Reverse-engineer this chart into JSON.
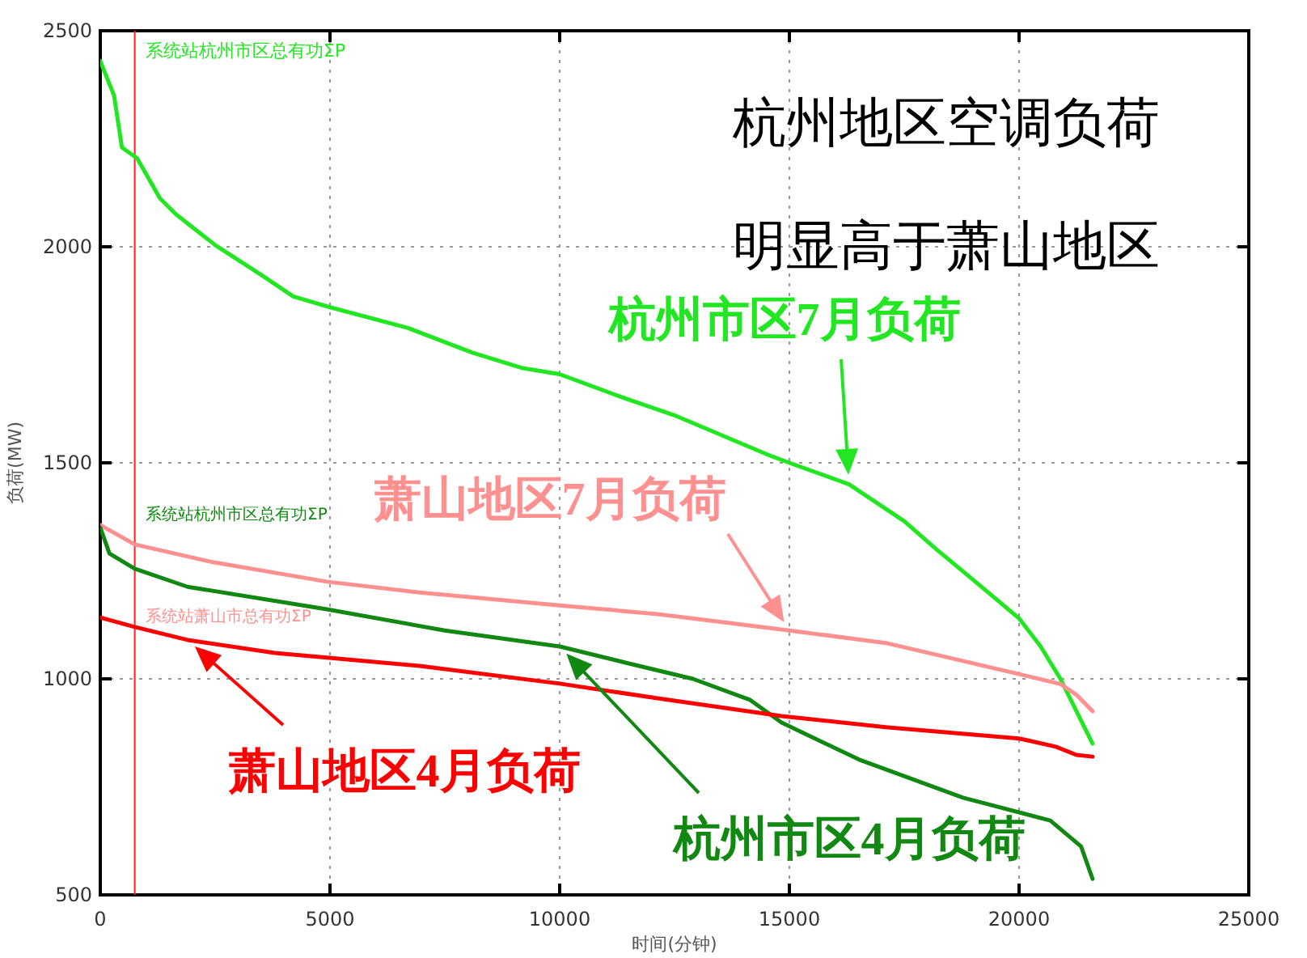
{
  "chart_data": {
    "type": "line",
    "xlabel": "时间(分钟)",
    "ylabel": "负荷(MW)",
    "xlim": [
      0,
      25000
    ],
    "ylim": [
      500,
      2500
    ],
    "xticks": [
      0,
      5000,
      10000,
      15000,
      20000,
      25000
    ],
    "yticks": [
      500,
      1000,
      1500,
      2000,
      2500
    ],
    "grid": true,
    "marker": "none",
    "line_style": "solid",
    "ref_lines": [
      {
        "axis": "x",
        "value": 750,
        "color": "#ff2020"
      }
    ],
    "annotations": [
      "系统站杭州市区总有功ΣP",
      "系统站萧山市总有功ΣP",
      "系统站杭州市区总有功ΣP",
      "杭州地区空调负荷",
      "明显高于萧山地区"
    ],
    "series": [
      {
        "name": "杭州市区7月负荷",
        "color": "#22e622",
        "x": [
          0,
          300,
          470,
          800,
          1300,
          1650,
          2500,
          3500,
          4200,
          5000,
          6700,
          8100,
          9200,
          10000,
          11450,
          12500,
          13500,
          14500,
          15000,
          16300,
          17500,
          18200,
          18900,
          20000,
          20470,
          20900,
          21250,
          21600
        ],
        "values": [
          2430,
          2350,
          2230,
          2205,
          2112,
          2075,
          2004,
          1935,
          1885,
          1860,
          1812,
          1755,
          1719,
          1705,
          1648,
          1610,
          1565,
          1520,
          1500,
          1450,
          1365,
          1300,
          1238,
          1140,
          1075,
          1000,
          925,
          850
        ]
      },
      {
        "name": "萧山地区7月负荷",
        "color": "#ff9090",
        "x": [
          0,
          750,
          2450,
          4930,
          6950,
          10000,
          12130,
          15000,
          17100,
          20000,
          20900,
          21250,
          21600
        ],
        "values": [
          1356,
          1311,
          1270,
          1225,
          1200,
          1170,
          1150,
          1112,
          1083,
          1011,
          988,
          963,
          925
        ]
      },
      {
        "name": "杭州市区4月负荷",
        "color": "#118811",
        "x": [
          0,
          200,
          750,
          1900,
          4930,
          7500,
          10000,
          11450,
          12900,
          14150,
          14830,
          16520,
          18780,
          20680,
          21350,
          21600
        ],
        "values": [
          1350,
          1290,
          1255,
          1213,
          1161,
          1112,
          1075,
          1037,
          1000,
          951,
          899,
          813,
          725,
          672,
          612,
          537
        ]
      },
      {
        "name": "萧山地区4月负荷",
        "color": "#ff0000",
        "x": [
          0,
          750,
          1900,
          3800,
          6950,
          10000,
          12130,
          14830,
          17100,
          20000,
          20800,
          21250,
          21600
        ],
        "values": [
          1142,
          1120,
          1090,
          1060,
          1030,
          989,
          955,
          914,
          888,
          862,
          843,
          824,
          820
        ]
      }
    ]
  }
}
